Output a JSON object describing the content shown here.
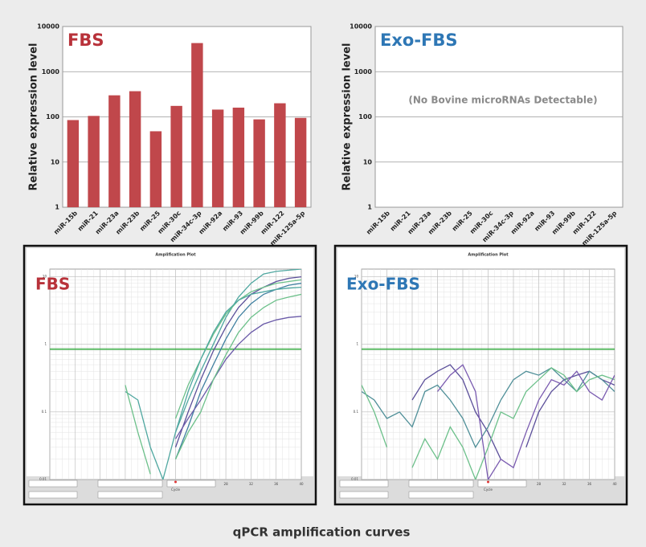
{
  "chart_data": [
    {
      "type": "bar",
      "panel_label": "FBS",
      "ylabel": "Relative expression level",
      "log_scale": true,
      "grid": true,
      "color": "#c0474b",
      "categories": [
        "miR-15b",
        "miR-21",
        "miR-23a",
        "miR-23b",
        "miR-25",
        "miR-30c",
        "miR-34c-3p",
        "miR-92a",
        "miR-93",
        "miR-99b",
        "miR-122",
        "miR-125a-5p"
      ],
      "values": [
        85,
        105,
        300,
        370,
        48,
        175,
        4300,
        145,
        160,
        88,
        200,
        95
      ],
      "ylim": [
        1,
        10000
      ],
      "yticks": [
        1,
        10,
        100,
        1000,
        10000
      ]
    },
    {
      "type": "bar",
      "panel_label": "Exo-FBS",
      "ylabel": "Relative expression level",
      "log_scale": true,
      "grid": true,
      "color": "#c0474b",
      "annotation": "(No Bovine microRNAs Detectable)",
      "categories": [
        "miR-15b",
        "miR-21",
        "miR-23a",
        "miR-23b",
        "miR-25",
        "miR-30c",
        "miR-34c-3p",
        "miR-92a",
        "miR-93",
        "miR-99b",
        "miR-122",
        "miR-125a-5p"
      ],
      "values": [
        null,
        null,
        null,
        null,
        null,
        null,
        null,
        null,
        null,
        null,
        null,
        null
      ],
      "ylim": [
        1,
        10000
      ],
      "yticks": [
        1,
        10,
        100,
        1000,
        10000
      ]
    },
    {
      "type": "line",
      "panel_label": "FBS",
      "title": "Amplification Plot",
      "xlabel": "Cycle",
      "log_scale": true,
      "grid": true,
      "threshold": 0.85,
      "threshold_color": "#3fae49",
      "x": [
        0,
        2,
        4,
        6,
        8,
        10,
        12,
        14,
        16,
        18,
        20,
        22,
        24,
        26,
        28,
        30,
        32,
        34,
        36,
        38,
        40
      ],
      "xlim": [
        0,
        40
      ],
      "xticks": [
        0,
        4,
        8,
        12,
        16,
        20,
        24,
        28,
        32,
        36,
        40
      ],
      "ylim": [
        0.01,
        13
      ],
      "yticks": [
        0.01,
        0.1,
        1,
        10
      ],
      "series": [
        {
          "color": "#4fa7a0",
          "values": [
            null,
            null,
            null,
            null,
            null,
            null,
            null,
            null,
            null,
            null,
            0.05,
            0.15,
            0.4,
            1,
            2.5,
            5,
            8,
            11,
            12,
            12.5,
            13
          ]
        },
        {
          "color": "#5b4f9a",
          "values": [
            null,
            null,
            null,
            null,
            null,
            null,
            null,
            null,
            null,
            null,
            0.03,
            0.1,
            0.3,
            0.8,
            1.8,
            3.5,
            5.5,
            7,
            8.5,
            9.5,
            10
          ]
        },
        {
          "color": "#3f7fa0",
          "values": [
            null,
            null,
            null,
            null,
            null,
            null,
            null,
            null,
            null,
            null,
            0.02,
            0.06,
            0.2,
            0.5,
            1.2,
            2.5,
            4,
            5.5,
            6.5,
            7.5,
            8
          ]
        },
        {
          "color": "#6cc08a",
          "values": [
            null,
            null,
            null,
            null,
            null,
            null,
            null,
            null,
            null,
            null,
            0.08,
            0.25,
            0.6,
            1.4,
            2.8,
            4.5,
            6,
            7,
            8,
            8.5,
            9
          ]
        },
        {
          "color": "#6a5aa8",
          "values": [
            null,
            null,
            null,
            null,
            null,
            null,
            null,
            null,
            null,
            null,
            0.04,
            0.08,
            0.15,
            0.3,
            0.6,
            1,
            1.5,
            2,
            2.3,
            2.5,
            2.6
          ]
        },
        {
          "color": "#4fa7a0",
          "values": [
            null,
            null,
            null,
            null,
            null,
            null,
            0.2,
            0.15,
            0.03,
            0.01,
            0.05,
            0.2,
            0.6,
            1.5,
            3,
            4.5,
            5.5,
            6,
            6.5,
            6.8,
            7
          ]
        },
        {
          "color": "#6cc08a",
          "values": [
            null,
            null,
            null,
            null,
            null,
            null,
            0.25,
            0.05,
            0.012,
            null,
            0.02,
            0.05,
            0.1,
            0.3,
            0.7,
            1.5,
            2.5,
            3.5,
            4.5,
            5,
            5.5
          ]
        }
      ]
    },
    {
      "type": "line",
      "panel_label": "Exo-FBS",
      "title": "Amplification Plot",
      "xlabel": "Cycle",
      "log_scale": true,
      "grid": true,
      "threshold": 0.85,
      "threshold_color": "#3fae49",
      "x": [
        0,
        2,
        4,
        6,
        8,
        10,
        12,
        14,
        16,
        18,
        20,
        22,
        24,
        26,
        28,
        30,
        32,
        34,
        36,
        38,
        40
      ],
      "xlim": [
        0,
        40
      ],
      "xticks": [
        0,
        4,
        8,
        12,
        16,
        20,
        24,
        28,
        32,
        36,
        40
      ],
      "ylim": [
        0.01,
        13
      ],
      "yticks": [
        0.01,
        0.1,
        1,
        10
      ],
      "series": [
        {
          "color": "#5b4f9a",
          "values": [
            null,
            null,
            null,
            null,
            0.15,
            0.3,
            0.4,
            0.5,
            0.3,
            0.1,
            0.05,
            0.02,
            null,
            0.03,
            0.1,
            0.2,
            0.3,
            0.35,
            0.4,
            0.3,
            0.25
          ]
        },
        {
          "color": "#4f8f98",
          "values": [
            0.2,
            0.15,
            0.08,
            0.1,
            0.06,
            0.2,
            0.25,
            0.15,
            0.08,
            0.03,
            0.06,
            0.15,
            0.3,
            0.4,
            0.35,
            0.45,
            0.3,
            0.2,
            0.4,
            0.3,
            0.2
          ]
        },
        {
          "color": "#6cc08a",
          "values": [
            0.25,
            0.1,
            0.03,
            null,
            0.015,
            0.04,
            0.02,
            0.06,
            0.03,
            0.01,
            0.03,
            0.1,
            0.08,
            0.2,
            0.3,
            0.45,
            0.35,
            0.2,
            0.3,
            0.35,
            0.3
          ]
        },
        {
          "color": "#7a5bb0",
          "values": [
            null,
            null,
            null,
            null,
            null,
            null,
            0.2,
            0.35,
            0.5,
            0.2,
            0.01,
            0.02,
            0.015,
            0.05,
            0.15,
            0.3,
            0.25,
            0.4,
            0.2,
            0.15,
            0.35
          ]
        }
      ]
    }
  ],
  "caption": "qPCR amplification curves"
}
